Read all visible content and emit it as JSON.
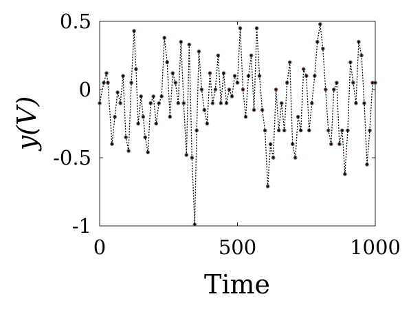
{
  "chart_data": {
    "type": "line",
    "title": "",
    "xlabel": "Time",
    "ylabel": "y(V)",
    "xlim": [
      0,
      1000
    ],
    "ylim": [
      -1,
      0.5
    ],
    "xticks": [
      0,
      500,
      1000
    ],
    "xtick_labels": [
      "0",
      "500",
      "1000"
    ],
    "yticks": [
      0.5,
      0,
      -0.5,
      -1
    ],
    "ytick_labels": [
      "0.5",
      "0",
      "-0.5",
      "-1"
    ],
    "grid": false,
    "legend": "none",
    "series": [
      {
        "color": "#0072BD",
        "style": "markers",
        "x": [
          0,
          15,
          25,
          30,
          45,
          55,
          65,
          75,
          85,
          95,
          105,
          115,
          125,
          132,
          140,
          150,
          158,
          165,
          175,
          185,
          195,
          205,
          215,
          225,
          235,
          245,
          255,
          265,
          275,
          285,
          295,
          305,
          315,
          325,
          335,
          345,
          352,
          360,
          370,
          380,
          390,
          400,
          410,
          420,
          430,
          440,
          450,
          460,
          470,
          480,
          490,
          500,
          510,
          520,
          530,
          540,
          550,
          560,
          570,
          580,
          590,
          600,
          610,
          620,
          630,
          640,
          650,
          660,
          670,
          680,
          690,
          700,
          710,
          720,
          730,
          740,
          750,
          760,
          770,
          780,
          790,
          800,
          810,
          820,
          830,
          840,
          850,
          860,
          870,
          880,
          890,
          900,
          910,
          920,
          930,
          940,
          950,
          960,
          970,
          980,
          990,
          1000
        ],
        "y": [
          -0.1,
          0.05,
          0.12,
          0.05,
          -0.4,
          -0.2,
          -0.02,
          -0.1,
          0.1,
          -0.35,
          -0.45,
          0.05,
          0.43,
          0.15,
          -0.25,
          -0.05,
          -0.2,
          -0.35,
          -0.46,
          -0.1,
          -0.05,
          -0.25,
          -0.1,
          -0.05,
          0.38,
          0.2,
          -0.2,
          0.12,
          0.05,
          -0.1,
          0.35,
          -0.1,
          -0.48,
          0.33,
          -0.5,
          -0.99,
          -0.3,
          0.28,
          0.0,
          -0.15,
          -0.25,
          0.12,
          -0.1,
          0.0,
          0.25,
          -0.1,
          0.12,
          -0.1,
          0.0,
          -0.05,
          0.1,
          0.05,
          0.45,
          0.0,
          -0.2,
          0.1,
          0.25,
          -0.15,
          0.45,
          0.1,
          -0.15,
          -0.3,
          -0.71,
          -0.4,
          -0.5,
          0.0,
          -0.3,
          -0.1,
          -0.3,
          0.05,
          0.2,
          -0.4,
          -0.5,
          -0.2,
          -0.3,
          0.15,
          0.1,
          -0.3,
          -0.1,
          0.1,
          0.35,
          0.48,
          0.3,
          0.0,
          -0.3,
          -0.4,
          0.0,
          0.05,
          -0.4,
          -0.3,
          -0.62,
          -0.3,
          0.2,
          0.05,
          -0.1,
          0.35,
          0.25,
          -0.1,
          -0.55,
          -0.3,
          0.05,
          0.05
        ]
      },
      {
        "color": "#D95319",
        "style": "markers",
        "x": [
          0,
          15,
          25,
          30,
          45,
          55,
          65,
          75,
          85,
          95,
          105,
          115,
          125,
          132,
          140,
          150,
          158,
          165,
          175,
          185,
          195,
          205,
          215,
          225,
          235,
          245,
          255,
          265,
          275,
          285,
          295,
          305,
          315,
          325,
          335,
          345,
          352,
          360,
          370,
          380,
          390,
          400,
          410,
          420,
          430,
          440,
          450,
          460,
          470,
          480,
          490,
          500,
          510,
          520,
          530,
          540,
          550,
          560,
          570,
          580,
          590,
          600,
          610,
          620,
          630,
          640,
          650,
          660,
          670,
          680,
          690,
          700,
          710,
          720,
          730,
          740,
          750,
          760,
          770,
          780,
          790,
          800,
          810,
          820,
          830,
          840,
          850,
          860,
          870,
          880,
          890,
          900,
          910,
          920,
          930,
          940,
          950,
          960,
          970,
          980,
          990,
          1000
        ],
        "y": [
          -0.1,
          0.05,
          0.12,
          0.05,
          -0.4,
          -0.2,
          -0.02,
          -0.1,
          0.1,
          -0.35,
          -0.45,
          0.05,
          0.43,
          0.15,
          -0.25,
          -0.05,
          -0.2,
          -0.35,
          -0.46,
          -0.1,
          -0.05,
          -0.25,
          -0.1,
          -0.05,
          0.38,
          0.2,
          -0.2,
          0.12,
          0.05,
          -0.1,
          0.35,
          -0.1,
          -0.48,
          0.33,
          -0.5,
          -0.99,
          -0.3,
          0.28,
          0.0,
          -0.15,
          -0.25,
          0.12,
          -0.1,
          0.0,
          0.25,
          -0.1,
          0.12,
          -0.1,
          0.0,
          -0.05,
          0.1,
          0.05,
          0.45,
          0.0,
          -0.2,
          0.1,
          0.25,
          -0.15,
          0.45,
          0.1,
          -0.15,
          -0.3,
          -0.71,
          -0.4,
          -0.5,
          0.0,
          -0.3,
          -0.1,
          -0.3,
          0.05,
          0.2,
          -0.4,
          -0.5,
          -0.2,
          -0.3,
          0.15,
          0.1,
          -0.3,
          -0.1,
          0.1,
          0.35,
          0.48,
          0.3,
          0.0,
          -0.3,
          -0.4,
          0.0,
          0.05,
          -0.4,
          -0.3,
          -0.62,
          -0.3,
          0.2,
          0.05,
          -0.1,
          0.35,
          0.25,
          -0.1,
          -0.55,
          -0.3,
          0.05,
          0.05
        ]
      },
      {
        "color": "#000000",
        "style": "dotted-line-markers",
        "x": [
          0,
          15,
          25,
          30,
          45,
          55,
          65,
          75,
          85,
          95,
          105,
          115,
          125,
          132,
          140,
          150,
          158,
          165,
          175,
          185,
          195,
          205,
          215,
          225,
          235,
          245,
          255,
          265,
          275,
          285,
          295,
          305,
          315,
          325,
          335,
          345,
          352,
          360,
          370,
          380,
          390,
          400,
          410,
          420,
          430,
          440,
          450,
          460,
          470,
          480,
          490,
          500,
          510,
          520,
          530,
          540,
          550,
          560,
          570,
          580,
          590,
          600,
          610,
          620,
          630,
          640,
          650,
          660,
          670,
          680,
          690,
          700,
          710,
          720,
          730,
          740,
          750,
          760,
          770,
          780,
          790,
          800,
          810,
          820,
          830,
          840,
          850,
          860,
          870,
          880,
          890,
          900,
          910,
          920,
          930,
          940,
          950,
          960,
          970,
          980,
          990,
          1000
        ],
        "y": [
          -0.1,
          0.05,
          0.12,
          0.05,
          -0.4,
          -0.2,
          -0.02,
          -0.1,
          0.1,
          -0.35,
          -0.45,
          0.05,
          0.43,
          0.15,
          -0.25,
          -0.05,
          -0.2,
          -0.35,
          -0.46,
          -0.1,
          -0.05,
          -0.25,
          -0.1,
          -0.05,
          0.38,
          0.2,
          -0.2,
          0.12,
          0.05,
          -0.1,
          0.35,
          -0.1,
          -0.48,
          0.33,
          -0.5,
          -0.99,
          -0.3,
          0.28,
          0.0,
          -0.15,
          -0.25,
          0.12,
          -0.1,
          0.0,
          0.25,
          -0.1,
          0.12,
          -0.1,
          0.0,
          -0.05,
          0.1,
          0.05,
          0.45,
          0.0,
          -0.2,
          0.1,
          0.25,
          -0.15,
          0.45,
          0.1,
          -0.15,
          -0.3,
          -0.71,
          -0.4,
          -0.5,
          0.0,
          -0.3,
          -0.1,
          -0.3,
          0.05,
          0.2,
          -0.4,
          -0.5,
          -0.2,
          -0.3,
          0.15,
          0.1,
          -0.3,
          -0.1,
          0.1,
          0.35,
          0.48,
          0.3,
          0.0,
          -0.3,
          -0.4,
          0.0,
          0.05,
          -0.4,
          -0.3,
          -0.62,
          -0.3,
          0.2,
          0.05,
          -0.1,
          0.35,
          0.25,
          -0.1,
          -0.55,
          -0.3,
          0.05,
          0.05
        ]
      }
    ]
  }
}
